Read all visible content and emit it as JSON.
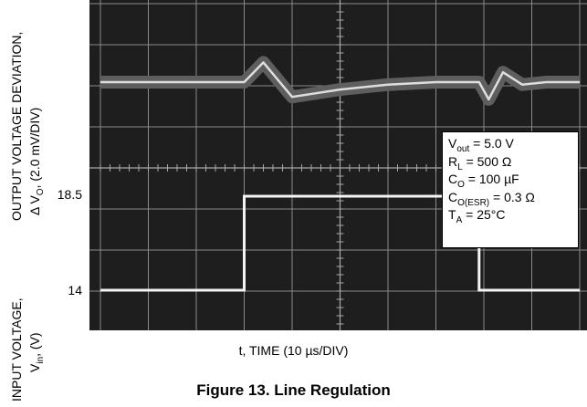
{
  "chart_data": {
    "type": "line",
    "title": "Figure 13. Line Regulation",
    "xlabel": "t, TIME (10 µs/DIV)",
    "ylabel_output": [
      "OUTPUT VOLTAGE DEVIATION,",
      "Δ VO, (2.0 mV/DIV)"
    ],
    "ylabel_input": [
      "INPUT VOLTAGE,",
      "Vin, (V)"
    ],
    "input_ticks": [
      {
        "label": "18.5",
        "value": 18.5
      },
      {
        "label": "14",
        "value": 14
      }
    ],
    "x_divisions": 10,
    "y_divisions": 8,
    "grid": true,
    "step_up_time_div": 3.0,
    "step_down_time_div": 7.9,
    "series": [
      {
        "x": [
          0,
          3.0,
          3.4,
          4.0,
          5.0,
          6.0,
          7.0,
          7.9,
          8.1,
          8.4,
          8.8,
          9.3,
          10
        ],
        "y": [
          0,
          0,
          1.6,
          -1.2,
          -0.6,
          -0.2,
          0,
          0,
          -1.4,
          0.8,
          -0.2,
          0,
          0
        ]
      },
      {
        "x": [
          0,
          3.0,
          3.0,
          7.9,
          7.9,
          10
        ],
        "y": [
          14,
          14,
          18.5,
          18.5,
          14,
          14
        ]
      }
    ],
    "params": {
      "vout": "Vout = 5.0 V",
      "rl": "RL = 500 Ω",
      "co": "CO = 100 µF",
      "coesr": "CO(ESR) = 0.3 Ω",
      "ta": "TA = 25°C"
    }
  }
}
